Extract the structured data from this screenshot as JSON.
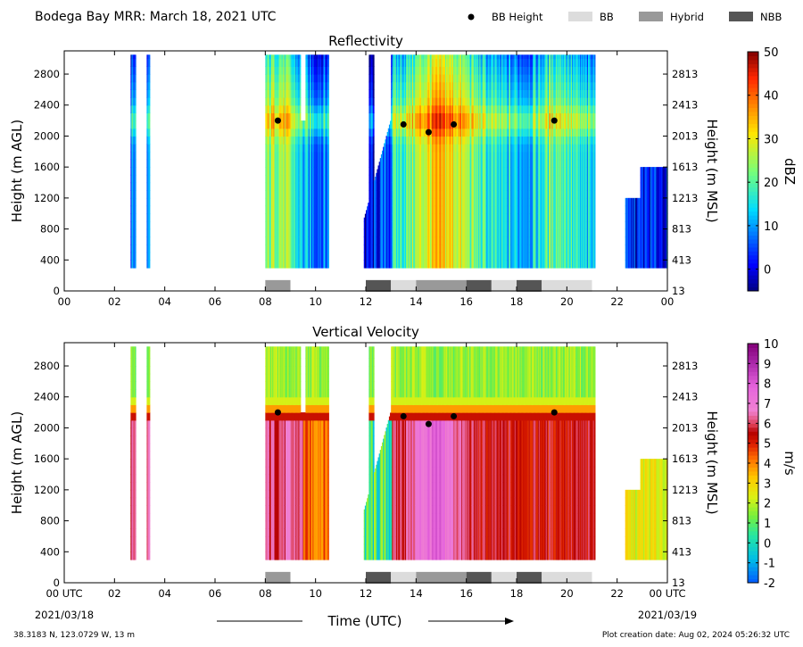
{
  "header": {
    "title": "Bodega Bay MRR:  March 18, 2021 UTC",
    "legend": [
      {
        "label": "BB Height",
        "kind": "dot",
        "color": "#000000"
      },
      {
        "label": "BB",
        "kind": "box",
        "color": "#dcdcdc"
      },
      {
        "label": "Hybrid",
        "kind": "box",
        "color": "#999999"
      },
      {
        "label": "NBB",
        "kind": "box",
        "color": "#555555"
      }
    ]
  },
  "footer": {
    "location": "38.3183 N, 123.0729 W, 13 m",
    "created": "Plot creation date: Aug 02, 2024 05:26:32 UTC",
    "xlabel": "Time (UTC)",
    "start_date": "2021/03/18",
    "end_date": "2021/03/19"
  },
  "chart_data": [
    {
      "type": "heatmap",
      "title": "Reflectivity",
      "ylabel": "Height (m AGL)",
      "ylabel_right": "Height (m MSL)",
      "xlim": [
        0,
        24
      ],
      "ylim": [
        0,
        3100
      ],
      "x_ticks": [
        "00",
        "02",
        "04",
        "06",
        "08",
        "10",
        "12",
        "14",
        "16",
        "18",
        "20",
        "22",
        "00"
      ],
      "y_ticks": [
        0,
        400,
        800,
        1200,
        1600,
        2000,
        2400,
        2800
      ],
      "y_ticks_right": [
        "13",
        "413",
        "813",
        "1213",
        "1613",
        "2013",
        "2413",
        "2813"
      ],
      "colorbar": {
        "label": "dBZ",
        "min": -5,
        "max": 50,
        "ticks": [
          "0",
          "10",
          "20",
          "30",
          "40",
          "50"
        ],
        "tick_values": [
          0,
          10,
          20,
          30,
          40,
          50
        ]
      },
      "bb_height": [
        {
          "x": 8.5,
          "y": 2200
        },
        {
          "x": 13.5,
          "y": 2150
        },
        {
          "x": 14.5,
          "y": 2050
        },
        {
          "x": 15.5,
          "y": 2150
        },
        {
          "x": 19.5,
          "y": 2200
        }
      ],
      "rain_type": [
        {
          "start": 8,
          "end": 9,
          "type": "Hybrid"
        },
        {
          "start": 12,
          "end": 13,
          "type": "NBB"
        },
        {
          "start": 13,
          "end": 14,
          "type": "BB"
        },
        {
          "start": 14,
          "end": 16,
          "type": "Hybrid"
        },
        {
          "start": 16,
          "end": 17,
          "type": "NBB"
        },
        {
          "start": 17,
          "end": 18,
          "type": "BB"
        },
        {
          "start": 18,
          "end": 19,
          "type": "NBB"
        },
        {
          "start": 19,
          "end": 21,
          "type": "BB"
        }
      ]
    },
    {
      "type": "heatmap",
      "title": "Vertical Velocity",
      "ylabel": "Height (m AGL)",
      "ylabel_right": "Height (m MSL)",
      "xlim": [
        0,
        24
      ],
      "ylim": [
        0,
        3100
      ],
      "x_ticks": [
        "00 UTC",
        "02",
        "04",
        "06",
        "08",
        "10",
        "12",
        "14",
        "16",
        "18",
        "20",
        "22",
        "00 UTC"
      ],
      "y_ticks": [
        0,
        400,
        800,
        1200,
        1600,
        2000,
        2400,
        2800
      ],
      "y_ticks_right": [
        "13",
        "413",
        "813",
        "1213",
        "1613",
        "2013",
        "2413",
        "2813"
      ],
      "colorbar": {
        "label": "m/s",
        "min": -2,
        "max": 10,
        "ticks": [
          "-2",
          "-1",
          "0",
          "1",
          "2",
          "3",
          "4",
          "5",
          "6",
          "7",
          "8",
          "9",
          "10"
        ],
        "tick_values": [
          -2,
          -1,
          0,
          1,
          2,
          3,
          4,
          5,
          6,
          7,
          8,
          9,
          10
        ]
      },
      "bb_height": [
        {
          "x": 8.5,
          "y": 2200
        },
        {
          "x": 13.5,
          "y": 2150
        },
        {
          "x": 14.5,
          "y": 2050
        },
        {
          "x": 15.5,
          "y": 2150
        },
        {
          "x": 19.5,
          "y": 2200
        }
      ],
      "rain_type": [
        {
          "start": 8,
          "end": 9,
          "type": "Hybrid"
        },
        {
          "start": 12,
          "end": 13,
          "type": "NBB"
        },
        {
          "start": 13,
          "end": 14,
          "type": "BB"
        },
        {
          "start": 14,
          "end": 16,
          "type": "Hybrid"
        },
        {
          "start": 16,
          "end": 17,
          "type": "NBB"
        },
        {
          "start": 17,
          "end": 18,
          "type": "BB"
        },
        {
          "start": 18,
          "end": 19,
          "type": "NBB"
        },
        {
          "start": 19,
          "end": 21,
          "type": "BB"
        }
      ]
    }
  ]
}
